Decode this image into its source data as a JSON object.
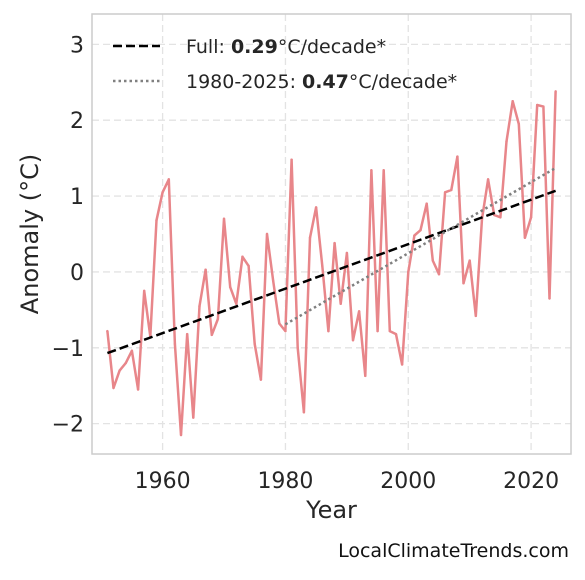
{
  "chart_data": {
    "type": "line",
    "xlabel": "Year",
    "ylabel": "Anomaly (°C)",
    "xlim": [
      1948.5,
      2026.5
    ],
    "ylim": [
      -2.4,
      3.4
    ],
    "x_ticks": [
      1960,
      1980,
      2000,
      2020
    ],
    "y_ticks": [
      -2,
      -1,
      0,
      1,
      2,
      3
    ],
    "y_tick_labels": [
      "−2",
      "−1",
      "0",
      "1",
      "2",
      "3"
    ],
    "grid": true,
    "legend_position": "top-left",
    "colors": {
      "anomaly": "#e8868a",
      "full_trend": "#000000",
      "recent_trend": "#808080",
      "grid": "#e3e3e3",
      "frame": "#cccccc"
    },
    "series": [
      {
        "x": [
          1951,
          1952,
          1953,
          1954,
          1955,
          1956,
          1957,
          1958,
          1959,
          1960,
          1961,
          1962,
          1963,
          1964,
          1965,
          1966,
          1967,
          1968,
          1969,
          1970,
          1971,
          1972,
          1973,
          1974,
          1975,
          1976,
          1977,
          1978,
          1979,
          1980,
          1981,
          1982,
          1983,
          1984,
          1985,
          1986,
          1987,
          1988,
          1989,
          1990,
          1991,
          1992,
          1993,
          1994,
          1995,
          1996,
          1997,
          1998,
          1999,
          2000,
          2001,
          2002,
          2003,
          2004,
          2005,
          2006,
          2007,
          2008,
          2009,
          2010,
          2011,
          2012,
          2013,
          2014,
          2015,
          2016,
          2017,
          2018,
          2019,
          2020,
          2021,
          2022,
          2023,
          2024
        ],
        "values": [
          -0.78,
          -1.53,
          -1.3,
          -1.2,
          -1.04,
          -1.55,
          -0.25,
          -0.85,
          0.68,
          1.05,
          1.22,
          -0.95,
          -2.15,
          -0.82,
          -1.92,
          -0.45,
          0.03,
          -0.83,
          -0.62,
          0.7,
          -0.2,
          -0.42,
          0.2,
          0.08,
          -0.95,
          -1.42,
          0.5,
          -0.12,
          -0.68,
          -0.78,
          1.48,
          -1.0,
          -1.85,
          0.45,
          0.85,
          0.08,
          -0.78,
          0.38,
          -0.42,
          0.25,
          -0.9,
          -0.52,
          -1.37,
          1.34,
          -0.78,
          1.34,
          -0.78,
          -0.82,
          -1.22,
          0.0,
          0.48,
          0.55,
          0.9,
          0.15,
          -0.03,
          1.05,
          1.08,
          1.52,
          -0.15,
          0.15,
          -0.58,
          0.7,
          1.22,
          0.75,
          0.72,
          1.72,
          2.25,
          1.95,
          0.45,
          0.72,
          2.2,
          2.18,
          -0.35,
          2.38
        ]
      },
      {
        "name": "Full: 0.29°C/decade*",
        "x": [
          1951,
          2024
        ],
        "values": [
          -1.07,
          1.07
        ]
      },
      {
        "name": "1980-2025: 0.47°C/decade*",
        "x": [
          1980,
          2024
        ],
        "values": [
          -0.69,
          1.37
        ]
      }
    ]
  },
  "legend": {
    "full_prefix": "Full: ",
    "full_value": "0.29",
    "full_suffix": "°C/decade*",
    "recent_prefix": "1980-2025: ",
    "recent_value": "0.47",
    "recent_suffix": "°C/decade*"
  },
  "source_credit": "LocalClimateTrends.com"
}
